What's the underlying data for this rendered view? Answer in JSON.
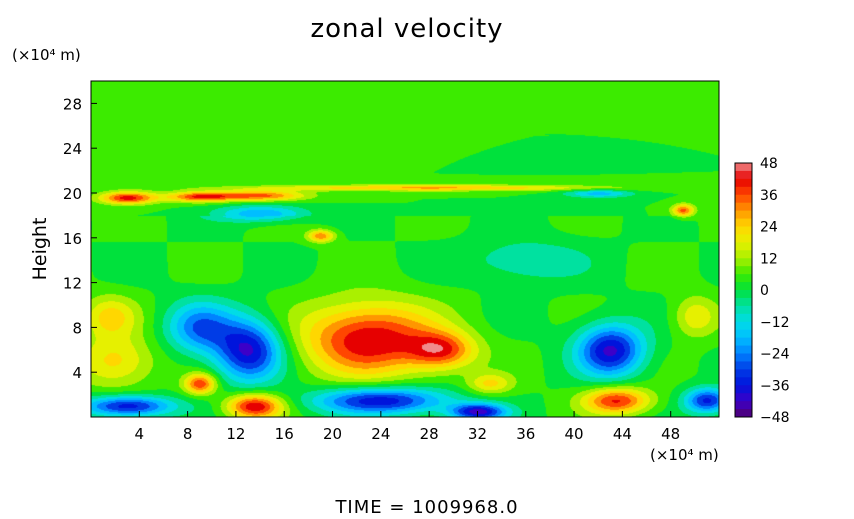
{
  "chart_data": {
    "type": "heatmap",
    "title": "zonal velocity",
    "xlabel": "",
    "ylabel": "Height",
    "x_unit": "(×10⁴ m)",
    "y_unit": "(×10⁴ m)",
    "xlim": [
      0,
      52
    ],
    "ylim": [
      0,
      30
    ],
    "x_ticks": [
      4,
      8,
      12,
      16,
      20,
      24,
      28,
      32,
      36,
      40,
      44,
      48
    ],
    "y_ticks": [
      4,
      8,
      12,
      16,
      20,
      24,
      28
    ],
    "colorbar": {
      "ticks": [
        48,
        36,
        24,
        12,
        0,
        -12,
        -24,
        -36,
        -48
      ],
      "range": [
        -48,
        48
      ]
    },
    "background_value": 3,
    "features": [
      {
        "x": 23,
        "y": 7,
        "rx": 6,
        "ry": 3.5,
        "value": 45
      },
      {
        "x": 29,
        "y": 6,
        "rx": 3,
        "ry": 1.8,
        "value": 35
      },
      {
        "x": 13.5,
        "y": 1,
        "rx": 2.5,
        "ry": 1.2,
        "value": 45
      },
      {
        "x": 9,
        "y": 3,
        "rx": 1.4,
        "ry": 1,
        "value": 38
      },
      {
        "x": 43.5,
        "y": 1.5,
        "rx": 3,
        "ry": 1.3,
        "value": 40
      },
      {
        "x": 2,
        "y": 5,
        "rx": 3.5,
        "ry": 2.5,
        "value": 24
      },
      {
        "x": 1.5,
        "y": 9,
        "rx": 2.5,
        "ry": 2,
        "value": 22
      },
      {
        "x": 13,
        "y": 6,
        "rx": 3,
        "ry": 3,
        "value": -40
      },
      {
        "x": 9,
        "y": 8,
        "rx": 3,
        "ry": 2.5,
        "value": -25
      },
      {
        "x": 43,
        "y": 6,
        "rx": 3,
        "ry": 2.5,
        "value": -40
      },
      {
        "x": 24,
        "y": 1.5,
        "rx": 6,
        "ry": 1.3,
        "value": -38
      },
      {
        "x": 3,
        "y": 1,
        "rx": 4,
        "ry": 1,
        "value": -38
      },
      {
        "x": 32,
        "y": 0.5,
        "rx": 2.5,
        "ry": 0.8,
        "value": -40
      },
      {
        "x": 51,
        "y": 1.5,
        "rx": 2,
        "ry": 1.2,
        "value": -35
      },
      {
        "x": 3,
        "y": 19.6,
        "rx": 2.5,
        "ry": 0.6,
        "value": 42
      },
      {
        "x": 9,
        "y": 19.7,
        "rx": 3,
        "ry": 0.5,
        "value": 38
      },
      {
        "x": 14,
        "y": 19.8,
        "rx": 4,
        "ry": 0.5,
        "value": 35
      },
      {
        "x": 19,
        "y": 16.2,
        "rx": 1.2,
        "ry": 0.6,
        "value": 32
      },
      {
        "x": 14,
        "y": 18.2,
        "rx": 4,
        "ry": 0.8,
        "value": -20
      },
      {
        "x": 49,
        "y": 18.5,
        "rx": 1,
        "ry": 0.6,
        "value": 35
      },
      {
        "x": 42,
        "y": 20,
        "rx": 3,
        "ry": 0.4,
        "value": -18
      },
      {
        "x": 28,
        "y": 20.5,
        "rx": 16,
        "ry": 0.3,
        "value": 28
      },
      {
        "x": 36,
        "y": 14,
        "rx": 5,
        "ry": 2,
        "value": -10
      },
      {
        "x": 50,
        "y": 9,
        "rx": 2,
        "ry": 2,
        "value": 20
      },
      {
        "x": 33,
        "y": 3,
        "rx": 2,
        "ry": 1,
        "value": 22
      }
    ]
  },
  "footer": {
    "time_label": "TIME",
    "time_eq": "=",
    "time_value": "1009968.0"
  }
}
